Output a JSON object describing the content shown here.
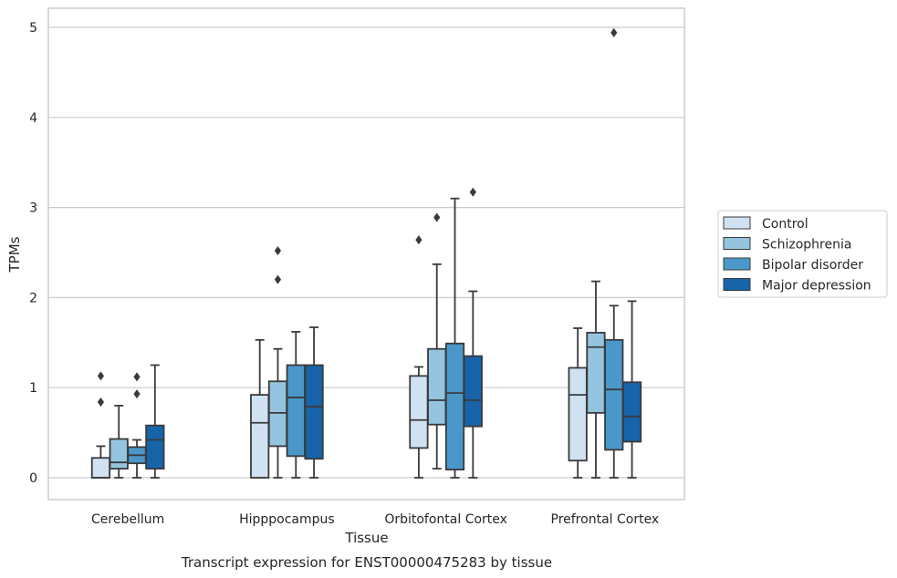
{
  "caption": "Transcript expression for ENST00000475283 by tissue",
  "chart_data": {
    "type": "box",
    "xlabel": "Tissue",
    "ylabel": "TPMs",
    "ylim": [
      -0.25,
      5.2
    ],
    "yticks": [
      "0",
      "1",
      "2",
      "3",
      "4",
      "5"
    ],
    "grid": "horizontal",
    "legend_position": "right",
    "categories": [
      "Cerebellum",
      "Hipppocampus",
      "Orbitofontal Cortex",
      "Prefrontal Cortex"
    ],
    "series": [
      {
        "name": "Control",
        "color": "#d0e1f2",
        "boxes": [
          {
            "whisker_low": 0,
            "q1": 0,
            "median": 0,
            "q3": 0.22,
            "whisker_high": 0.35,
            "outliers": [
              0.84,
              1.13
            ]
          },
          {
            "whisker_low": 0,
            "q1": 0,
            "median": 0.61,
            "q3": 0.92,
            "whisker_high": 1.53,
            "outliers": []
          },
          {
            "whisker_low": 0,
            "q1": 0.33,
            "median": 0.64,
            "q3": 1.13,
            "whisker_high": 1.23,
            "outliers": [
              2.64
            ]
          },
          {
            "whisker_low": 0,
            "q1": 0.19,
            "median": 0.92,
            "q3": 1.22,
            "whisker_high": 1.66,
            "outliers": []
          }
        ]
      },
      {
        "name": "Schizophrenia",
        "color": "#94c4df",
        "boxes": [
          {
            "whisker_low": 0,
            "q1": 0.1,
            "median": 0.17,
            "q3": 0.43,
            "whisker_high": 0.8,
            "outliers": []
          },
          {
            "whisker_low": 0,
            "q1": 0.35,
            "median": 0.72,
            "q3": 1.07,
            "whisker_high": 1.43,
            "outliers": [
              2.2,
              2.52
            ]
          },
          {
            "whisker_low": 0.1,
            "q1": 0.59,
            "median": 0.86,
            "q3": 1.43,
            "whisker_high": 2.37,
            "outliers": [
              2.89
            ]
          },
          {
            "whisker_low": 0,
            "q1": 0.72,
            "median": 1.45,
            "q3": 1.61,
            "whisker_high": 2.18,
            "outliers": []
          }
        ]
      },
      {
        "name": "Bipolar disorder",
        "color": "#4a98c9",
        "boxes": [
          {
            "whisker_low": 0,
            "q1": 0.16,
            "median": 0.25,
            "q3": 0.34,
            "whisker_high": 0.42,
            "outliers": [
              0.93,
              1.12
            ]
          },
          {
            "whisker_low": 0,
            "q1": 0.24,
            "median": 0.89,
            "q3": 1.25,
            "whisker_high": 1.62,
            "outliers": []
          },
          {
            "whisker_low": 0,
            "q1": 0.09,
            "median": 0.94,
            "q3": 1.49,
            "whisker_high": 3.1,
            "outliers": []
          },
          {
            "whisker_low": 0,
            "q1": 0.31,
            "median": 0.98,
            "q3": 1.53,
            "whisker_high": 1.91,
            "outliers": [
              4.94
            ]
          }
        ]
      },
      {
        "name": "Major depression",
        "color": "#1764ab",
        "boxes": [
          {
            "whisker_low": 0,
            "q1": 0.1,
            "median": 0.42,
            "q3": 0.58,
            "whisker_high": 1.25,
            "outliers": []
          },
          {
            "whisker_low": 0,
            "q1": 0.21,
            "median": 0.79,
            "q3": 1.25,
            "whisker_high": 1.67,
            "outliers": []
          },
          {
            "whisker_low": 0,
            "q1": 0.57,
            "median": 0.86,
            "q3": 1.35,
            "whisker_high": 2.07,
            "outliers": [
              3.17
            ]
          },
          {
            "whisker_low": 0,
            "q1": 0.4,
            "median": 0.68,
            "q3": 1.06,
            "whisker_high": 1.96,
            "outliers": []
          }
        ]
      }
    ]
  }
}
